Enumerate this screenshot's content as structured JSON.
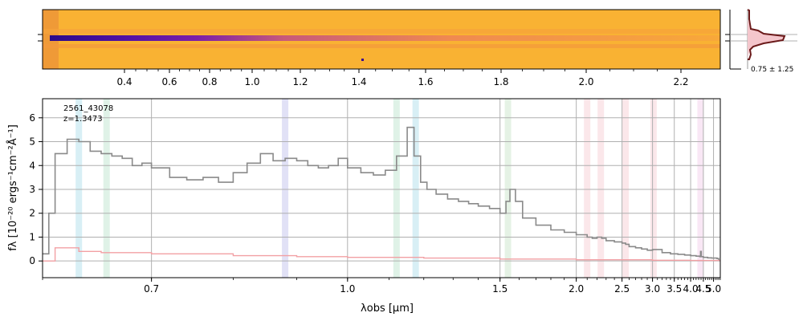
{
  "top_panel": {
    "tick_labels": [
      "0.4",
      "0.6",
      "0.8",
      "1.0",
      "1.2",
      "1.4",
      "1.6",
      "1.8",
      "2.0",
      "2.2"
    ],
    "tick_values": [
      0.4,
      0.6,
      0.8,
      1.0,
      1.2,
      1.4,
      1.6,
      1.8,
      2.0,
      2.2
    ],
    "colormap": "plasma",
    "colors": {
      "background": "#f9b233",
      "trace": "#5a10a0"
    }
  },
  "profile_panel": {
    "label": "0.75 ± 1.25",
    "line_color": "#6b1a1a",
    "fill_color": "#f4c6cc"
  },
  "chart_data": {
    "type": "line",
    "title": "",
    "xlabel": "λobs [μm]",
    "ylabel": "fλ [10⁻²⁰ ergs⁻¹cm⁻²Å⁻¹]",
    "ylim": [
      -0.7,
      6.8
    ],
    "xlim": [
      0.6,
      5.4
    ],
    "x_scale": "reciprocal",
    "grid": true,
    "x_ticks": [
      0.7,
      1.0,
      1.5,
      2.0,
      2.5,
      3.0,
      3.5,
      4.0,
      4.5,
      5.0
    ],
    "x_tick_labels": [
      "0.7",
      "1.0",
      "1.5",
      "2.0",
      "2.5",
      "3.0",
      "3.5",
      "4.0",
      "4.5",
      "5.0"
    ],
    "y_ticks": [
      0,
      1,
      2,
      3,
      4,
      5,
      6
    ],
    "y_tick_labels": [
      "0",
      "1",
      "2",
      "3",
      "4",
      "5",
      "6"
    ],
    "annotations": [
      "2561_43078",
      "z=1.3473"
    ],
    "bands": [
      {
        "x": 0.63,
        "color": "#b8e2ec"
      },
      {
        "x": 0.655,
        "color": "#c5e8d4"
      },
      {
        "x": 0.88,
        "color": "#c8c8ee"
      },
      {
        "x": 1.12,
        "color": "#c5e8d4"
      },
      {
        "x": 1.175,
        "color": "#b8e2ec"
      },
      {
        "x": 1.54,
        "color": "#cfe8cf"
      },
      {
        "x": 2.1,
        "color": "#f8d4d8"
      },
      {
        "x": 2.24,
        "color": "#f8d4d8"
      },
      {
        "x": 2.55,
        "color": "#f8d4d8"
      },
      {
        "x": 3.02,
        "color": "#f8d4d8"
      },
      {
        "x": 4.38,
        "color": "#f4d4ec"
      }
    ],
    "series": [
      {
        "color": "#8a8a8a",
        "x": [
          0.6,
          0.605,
          0.61,
          0.62,
          0.63,
          0.64,
          0.65,
          0.66,
          0.67,
          0.68,
          0.69,
          0.7,
          0.72,
          0.74,
          0.76,
          0.78,
          0.8,
          0.82,
          0.84,
          0.86,
          0.88,
          0.9,
          0.92,
          0.94,
          0.96,
          0.98,
          1.0,
          1.03,
          1.06,
          1.09,
          1.12,
          1.15,
          1.17,
          1.19,
          1.21,
          1.24,
          1.28,
          1.32,
          1.36,
          1.4,
          1.45,
          1.5,
          1.53,
          1.55,
          1.58,
          1.62,
          1.7,
          1.8,
          1.9,
          2.0,
          2.1,
          2.15,
          2.2,
          2.25,
          2.3,
          2.4,
          2.5,
          2.55,
          2.6,
          2.7,
          2.8,
          2.9,
          3.0,
          3.2,
          3.4,
          3.6,
          3.8,
          4.0,
          4.2,
          4.35,
          4.38,
          4.41,
          4.5,
          4.7,
          4.9,
          5.1,
          5.2,
          5.3,
          5.4
        ],
        "values": [
          0.3,
          2.0,
          4.5,
          5.1,
          5.0,
          4.6,
          4.5,
          4.4,
          4.3,
          4.0,
          4.1,
          3.9,
          3.5,
          3.4,
          3.5,
          3.3,
          3.7,
          4.1,
          4.5,
          4.2,
          4.3,
          4.2,
          4.0,
          3.9,
          4.0,
          4.3,
          3.9,
          3.7,
          3.6,
          3.8,
          4.4,
          5.6,
          4.4,
          3.3,
          3.0,
          2.8,
          2.6,
          2.5,
          2.4,
          2.3,
          2.2,
          2.0,
          2.5,
          3.0,
          2.5,
          1.8,
          1.5,
          1.3,
          1.2,
          1.1,
          1.0,
          0.95,
          1.0,
          0.95,
          0.85,
          0.8,
          0.75,
          0.7,
          0.6,
          0.55,
          0.5,
          0.45,
          0.48,
          0.35,
          0.3,
          0.28,
          0.25,
          0.22,
          0.2,
          0.18,
          0.4,
          0.18,
          0.15,
          0.13,
          0.12,
          0.12,
          0.1,
          0.02,
          0.0
        ]
      },
      {
        "color": "#f2a0a4",
        "x": [
          0.6,
          0.61,
          0.63,
          0.65,
          0.7,
          0.8,
          0.9,
          1.0,
          1.2,
          1.5,
          2.0,
          3.0,
          4.0,
          5.0,
          5.4
        ],
        "values": [
          0.0,
          0.55,
          0.4,
          0.35,
          0.3,
          0.22,
          0.18,
          0.15,
          0.12,
          0.08,
          0.05,
          0.03,
          0.02,
          0.02,
          0.02
        ]
      }
    ]
  }
}
